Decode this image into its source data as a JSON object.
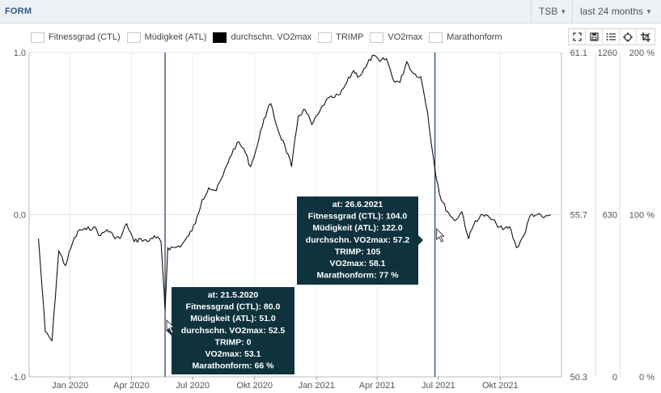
{
  "header": {
    "title": "FORM",
    "dropdown_metric": "TSB",
    "dropdown_range": "last 24 months"
  },
  "icons": {
    "chevron": "chevron-down-icon",
    "tools": [
      "fullscreen-icon",
      "save-icon",
      "list-icon",
      "crosshair-icon",
      "crop-icon"
    ]
  },
  "colors": {
    "line": "#111111",
    "marker_line": "#1f3a5f",
    "tooltip_bg": "#0f333d",
    "header_bg": "#eef1f4",
    "title": "#2f5a84"
  },
  "legend": [
    {
      "label": "Fitnessgrad (CTL)",
      "filled": false
    },
    {
      "label": "Müdigkeit (ATL)",
      "filled": false
    },
    {
      "label": "durchschn. VO2max",
      "filled": true
    },
    {
      "label": "TRIMP",
      "filled": false
    },
    {
      "label": "VO2max",
      "filled": false
    },
    {
      "label": "Marathonform",
      "filled": false
    }
  ],
  "chart_data": {
    "type": "line",
    "series": [
      {
        "name": "durchschn. VO2max",
        "x": [
          "2019-11-15",
          "2019-11-25",
          "2019-12-05",
          "2019-12-15",
          "2019-12-25",
          "2020-01-05",
          "2020-01-15",
          "2020-01-25",
          "2020-02-05",
          "2020-02-15",
          "2020-02-25",
          "2020-03-05",
          "2020-03-15",
          "2020-03-25",
          "2020-04-05",
          "2020-04-15",
          "2020-04-25",
          "2020-05-05",
          "2020-05-15",
          "2020-05-21",
          "2020-05-25",
          "2020-06-05",
          "2020-06-15",
          "2020-06-25",
          "2020-07-05",
          "2020-07-15",
          "2020-07-25",
          "2020-08-05",
          "2020-08-15",
          "2020-08-25",
          "2020-09-05",
          "2020-09-15",
          "2020-09-25",
          "2020-10-05",
          "2020-10-15",
          "2020-10-25",
          "2020-11-05",
          "2020-11-15",
          "2020-11-25",
          "2020-12-05",
          "2020-12-15",
          "2020-12-25",
          "2021-01-05",
          "2021-01-15",
          "2021-01-25",
          "2021-02-05",
          "2021-02-15",
          "2021-02-25",
          "2021-03-05",
          "2021-03-15",
          "2021-03-25",
          "2021-04-05",
          "2021-04-15",
          "2021-04-25",
          "2021-05-05",
          "2021-05-15",
          "2021-05-25",
          "2021-06-05",
          "2021-06-15",
          "2021-06-26",
          "2021-07-05",
          "2021-07-15",
          "2021-07-25",
          "2021-08-05",
          "2021-08-15",
          "2021-08-25",
          "2021-09-05",
          "2021-09-15",
          "2021-09-25",
          "2021-10-05",
          "2021-10-15",
          "2021-10-25",
          "2021-11-05",
          "2021-11-15",
          "2021-11-25",
          "2021-12-05",
          "2021-12-15"
        ],
        "y": [
          54.9,
          51.8,
          51.5,
          54.5,
          54.0,
          54.8,
          55.2,
          55.2,
          55.3,
          55.0,
          55.2,
          55.0,
          54.9,
          55.4,
          54.8,
          54.9,
          54.8,
          55.0,
          54.8,
          52.5,
          54.6,
          54.6,
          54.7,
          55.0,
          55.4,
          56.2,
          56.6,
          56.5,
          57.0,
          57.6,
          58.1,
          57.9,
          57.3,
          58.0,
          58.9,
          59.4,
          58.5,
          58.0,
          57.3,
          59.0,
          59.2,
          58.7,
          59.1,
          59.5,
          59.6,
          59.7,
          60.1,
          60.5,
          60.3,
          60.6,
          61.0,
          60.8,
          60.9,
          60.2,
          60.1,
          60.8,
          60.4,
          60.3,
          59.1,
          57.2,
          56.2,
          55.8,
          55.5,
          55.8,
          54.9,
          55.5,
          55.7,
          55.6,
          55.4,
          55.2,
          55.3,
          54.6,
          55.0,
          55.7,
          55.7,
          55.6,
          55.7
        ]
      }
    ],
    "left_axis": {
      "ylim": [
        -1.0,
        1.0
      ],
      "ticks": [
        "1.0",
        "0.0",
        "-1.0"
      ]
    },
    "right_axis_1": {
      "ylim": [
        50.3,
        61.1
      ],
      "ticks": [
        "61.1",
        "55.7",
        "50.3"
      ]
    },
    "right_axis_2": {
      "ylim": [
        0,
        1260
      ],
      "ticks": [
        "1260",
        "630",
        "0"
      ]
    },
    "right_axis_3": {
      "ylim": [
        0,
        200
      ],
      "ticks": [
        "200 %",
        "100 %",
        "0 %"
      ]
    },
    "x_axis": {
      "range": [
        "2019-11-01",
        "2021-12-31"
      ],
      "ticks": [
        {
          "date": "2020-01-01",
          "label": "Jan 2020"
        },
        {
          "date": "2020-04-01",
          "label": "Apr 2020"
        },
        {
          "date": "2020-07-01",
          "label": "Jul 2020"
        },
        {
          "date": "2020-10-01",
          "label": "Okt 2020"
        },
        {
          "date": "2021-01-01",
          "label": "Jan 2021"
        },
        {
          "date": "2021-04-01",
          "label": "Apr 2021"
        },
        {
          "date": "2021-07-01",
          "label": "Jul 2021"
        },
        {
          "date": "2021-10-01",
          "label": "Okt 2021"
        }
      ]
    },
    "grid": true,
    "markers": [
      {
        "date": "2020-05-21",
        "lines": [
          {
            "k": "at:",
            "v": "21.5.2020"
          },
          {
            "k": "Fitnessgrad (CTL):",
            "v": "80.0"
          },
          {
            "k": "Müdigkeit (ATL):",
            "v": "51.0"
          },
          {
            "k": "durchschn. VO2max:",
            "v": "52.5"
          },
          {
            "k": "TRIMP:",
            "v": "0"
          },
          {
            "k": "VO2max:",
            "v": "53.1"
          },
          {
            "k": "Marathonform:",
            "v": "66 %"
          }
        ]
      },
      {
        "date": "2021-06-26",
        "lines": [
          {
            "k": "at:",
            "v": "26.6.2021"
          },
          {
            "k": "Fitnessgrad (CTL):",
            "v": "104.0"
          },
          {
            "k": "Müdigkeit (ATL):",
            "v": "122.0"
          },
          {
            "k": "durchschn. VO2max:",
            "v": "57.2"
          },
          {
            "k": "TRIMP:",
            "v": "105"
          },
          {
            "k": "VO2max:",
            "v": "58.1"
          },
          {
            "k": "Marathonform:",
            "v": "77 %"
          }
        ]
      }
    ]
  }
}
